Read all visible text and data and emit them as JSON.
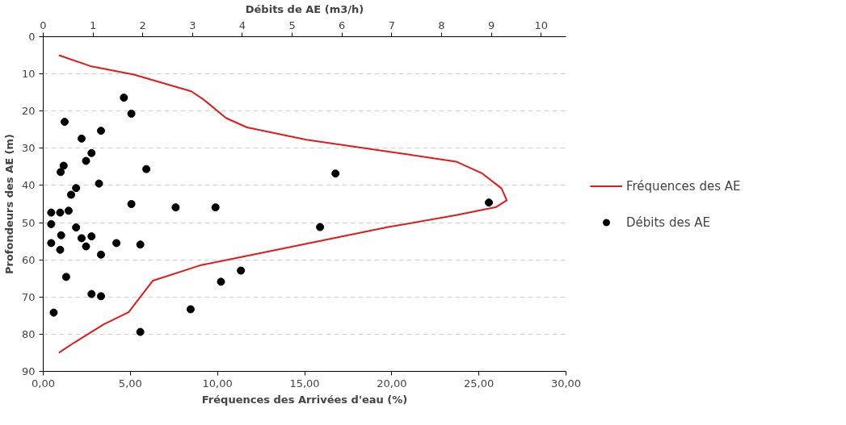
{
  "chart_data": {
    "type": "scatter",
    "xlabel": "Fréquences des Arrivées d'eau (%)",
    "x2label": "Débits de AE (m3/h)",
    "ylabel": "Profondeurs des AE (m)",
    "xlim": [
      0,
      30
    ],
    "xticks": [
      {
        "value": 0,
        "label": "0,00"
      },
      {
        "value": 5,
        "label": "5,00"
      },
      {
        "value": 10,
        "label": "10,00"
      },
      {
        "value": 15,
        "label": "15,00"
      },
      {
        "value": 20,
        "label": "20,00"
      },
      {
        "value": 25,
        "label": "25,00"
      },
      {
        "value": 30,
        "label": "30,00"
      }
    ],
    "x2lim": [
      0,
      10.5
    ],
    "x2ticks": [
      0,
      1,
      2,
      3,
      4,
      5,
      6,
      7,
      8,
      9,
      10
    ],
    "ylim": [
      90,
      0
    ],
    "yticks": [
      0,
      10,
      20,
      30,
      40,
      50,
      60,
      70,
      80,
      90
    ],
    "grid": "y",
    "legend": "right",
    "series": [
      {
        "name": "Fréquences des AE",
        "type": "line",
        "color": "#e31a1c",
        "marker": "none",
        "line_style": "solid",
        "x": [
          0.9,
          2.7,
          5.2,
          8.5,
          9.2,
          10.5,
          11.7,
          15.1,
          19.8,
          23.7,
          25.2,
          26.3,
          26.6,
          26.0,
          23.7,
          19.8,
          15.1,
          11.3,
          9.0,
          6.3,
          5.7,
          4.9,
          3.5,
          1.8,
          0.9
        ],
        "values": [
          5,
          7.9,
          10.2,
          14.7,
          16.9,
          21.9,
          24.4,
          27.7,
          30.9,
          33.6,
          36.8,
          40.8,
          44.0,
          45.8,
          48.0,
          51.2,
          55.7,
          59.3,
          61.5,
          65.6,
          69.2,
          74.1,
          77.3,
          82.2,
          85
        ]
      },
      {
        "name": "Débits des AE",
        "type": "scatter",
        "axis": "x2",
        "color": "#000000",
        "marker": "circle",
        "x": [
          1.62,
          1.77,
          0.43,
          1.16,
          0.77,
          0.97,
          0.86,
          0.41,
          0.35,
          2.07,
          1.12,
          0.66,
          0.56,
          0.16,
          0.34,
          0.51,
          1.77,
          2.66,
          3.46,
          0.16,
          0.66,
          0.36,
          0.16,
          0.77,
          0.97,
          0.86,
          1.47,
          1.95,
          0.34,
          1.16,
          0.46,
          3.97,
          3.57,
          0.97,
          1.16,
          0.21,
          2.96,
          1.95,
          5.87,
          8.95,
          5.56
        ],
        "values": [
          16.4,
          20.7,
          22.9,
          25.3,
          27.4,
          31.3,
          33.4,
          34.7,
          36.4,
          35.6,
          39.5,
          40.7,
          42.5,
          47.3,
          47.3,
          46.8,
          45.0,
          45.9,
          45.9,
          50.4,
          51.3,
          53.4,
          55.5,
          54.2,
          53.7,
          56.4,
          55.5,
          55.9,
          57.3,
          58.6,
          64.6,
          62.9,
          65.9,
          69.2,
          69.8,
          74.2,
          73.3,
          79.4,
          36.8,
          44.6,
          51.2
        ]
      }
    ]
  }
}
